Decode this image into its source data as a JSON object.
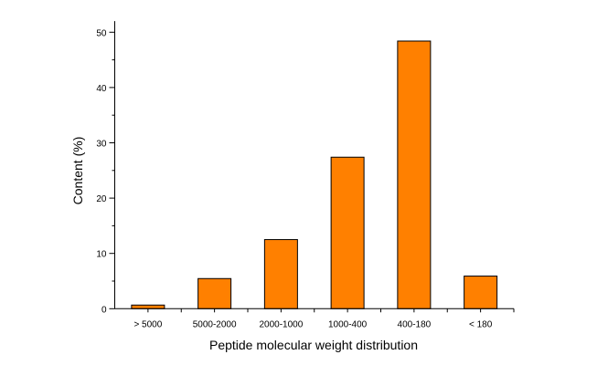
{
  "chart_data": {
    "type": "bar",
    "categories": [
      "> 5000",
      "5000-2000",
      "2000-1000",
      "1000-400",
      "400-180",
      "< 180"
    ],
    "values": [
      0.66,
      5.45,
      12.5,
      27.4,
      48.4,
      5.9
    ],
    "xlabel": "Peptide molecular weight distribution",
    "ylabel": "Content (%)",
    "ylim": [
      0,
      52
    ],
    "yticks": [
      0,
      10,
      20,
      30,
      40,
      50
    ],
    "grid": false,
    "bar_color": "#FF8000",
    "bar_edge_color": "#000000"
  }
}
